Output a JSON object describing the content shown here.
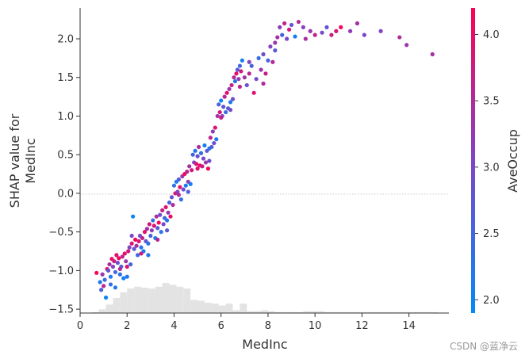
{
  "chart_data": {
    "type": "scatter",
    "title": "",
    "xlabel": "MedInc",
    "ylabel_lines": [
      "SHAP value for",
      "MedInc"
    ],
    "xlim": [
      0,
      15.7
    ],
    "ylim": [
      -1.55,
      2.4
    ],
    "xticks": [
      0,
      2,
      4,
      6,
      8,
      10,
      12,
      14
    ],
    "yticks": [
      -1.5,
      -1.0,
      -0.5,
      0.0,
      0.5,
      1.0,
      1.5,
      2.0
    ],
    "zero_line": true,
    "colorbar": {
      "label": "AveOccup",
      "min": 1.9,
      "max": 4.2,
      "ticks": [
        2.0,
        2.5,
        3.0,
        3.5,
        4.0
      ],
      "low_color": "#008afb",
      "high_color": "#ff0052"
    },
    "histogram": {
      "bin_edges": [
        0.5,
        0.8,
        1.1,
        1.4,
        1.7,
        2.0,
        2.3,
        2.6,
        2.9,
        3.2,
        3.5,
        3.8,
        4.1,
        4.4,
        4.7,
        5.0,
        5.3,
        5.6,
        5.9,
        6.2,
        6.5,
        6.8,
        7.1,
        7.4,
        7.7,
        8.0,
        8.3,
        8.6,
        8.9,
        9.2,
        9.5,
        9.8,
        10.1,
        10.4,
        10.7,
        11.0,
        11.3,
        11.6,
        11.9,
        12.2,
        12.5,
        12.8,
        13.1,
        13.4,
        13.7,
        14.0,
        14.3,
        14.6,
        14.9,
        15.2
      ],
      "counts": [
        1,
        4,
        9,
        16,
        22,
        26,
        28,
        27,
        26,
        28,
        32,
        30,
        28,
        26,
        14,
        13,
        11,
        10,
        8,
        10,
        3,
        10,
        2,
        2,
        3,
        2,
        1,
        1,
        1,
        1,
        2,
        2,
        2,
        1,
        1,
        1,
        1,
        1,
        1,
        1,
        1,
        1,
        1,
        1,
        1,
        1,
        1,
        1,
        1
      ]
    },
    "points": [
      [
        0.7,
        -1.03,
        4.1
      ],
      [
        0.85,
        -1.15,
        2.2
      ],
      [
        0.9,
        -1.25,
        2.6
      ],
      [
        0.95,
        -1.05,
        3.3
      ],
      [
        1.0,
        -1.2,
        3.6
      ],
      [
        1.05,
        -1.12,
        2.4
      ],
      [
        1.1,
        -1.35,
        2.0
      ],
      [
        1.15,
        -0.98,
        3.9
      ],
      [
        1.2,
        -1.0,
        2.8
      ],
      [
        1.25,
        -0.92,
        3.4
      ],
      [
        1.3,
        -1.08,
        2.2
      ],
      [
        1.35,
        -0.85,
        4.0
      ],
      [
        1.4,
        -0.95,
        3.1
      ],
      [
        1.45,
        -0.88,
        3.7
      ],
      [
        1.5,
        -1.02,
        2.5
      ],
      [
        1.55,
        -0.8,
        3.9
      ],
      [
        1.6,
        -0.9,
        2.9
      ],
      [
        1.65,
        -0.84,
        4.1
      ],
      [
        1.7,
        -1.05,
        2.3
      ],
      [
        1.75,
        -0.95,
        2.6
      ],
      [
        1.8,
        -0.82,
        3.6
      ],
      [
        1.85,
        -1.1,
        2.1
      ],
      [
        1.9,
        -0.78,
        4.0
      ],
      [
        1.95,
        -0.88,
        3.3
      ],
      [
        2.0,
        -1.08,
        2.2
      ],
      [
        2.05,
        -0.75,
        3.8
      ],
      [
        2.1,
        -0.7,
        3.1
      ],
      [
        2.15,
        -0.92,
        2.5
      ],
      [
        2.2,
        -0.65,
        3.9
      ],
      [
        2.25,
        -0.3,
        2.0
      ],
      [
        2.3,
        -0.72,
        2.7
      ],
      [
        2.35,
        -0.6,
        4.1
      ],
      [
        2.4,
        -0.68,
        3.5
      ],
      [
        2.45,
        -0.8,
        2.4
      ],
      [
        2.5,
        -0.62,
        3.9
      ],
      [
        2.55,
        -0.55,
        3.0
      ],
      [
        2.6,
        -0.7,
        2.3
      ],
      [
        2.65,
        -0.58,
        3.6
      ],
      [
        2.7,
        -0.75,
        2.1
      ],
      [
        2.75,
        -0.5,
        4.0
      ],
      [
        2.8,
        -0.62,
        2.8
      ],
      [
        2.85,
        -0.46,
        3.4
      ],
      [
        2.9,
        -0.8,
        2.2
      ],
      [
        2.95,
        -0.4,
        3.8
      ],
      [
        3.0,
        -0.55,
        2.6
      ],
      [
        3.05,
        -0.48,
        3.2
      ],
      [
        3.1,
        -0.35,
        2.4
      ],
      [
        3.15,
        -0.42,
        3.9
      ],
      [
        3.2,
        -0.58,
        2.1
      ],
      [
        3.25,
        -0.3,
        3.5
      ],
      [
        3.3,
        -0.45,
        2.7
      ],
      [
        3.35,
        -0.38,
        4.1
      ],
      [
        3.4,
        -0.28,
        2.9
      ],
      [
        3.45,
        -0.5,
        2.3
      ],
      [
        3.5,
        -0.22,
        3.7
      ],
      [
        3.55,
        -0.4,
        3.0
      ],
      [
        3.6,
        -0.32,
        2.5
      ],
      [
        3.65,
        -0.18,
        3.9
      ],
      [
        3.7,
        -0.35,
        2.2
      ],
      [
        3.75,
        -0.25,
        3.3
      ],
      [
        3.8,
        -0.12,
        2.6
      ],
      [
        3.85,
        -0.3,
        4.0
      ],
      [
        3.9,
        -0.05,
        2.8
      ],
      [
        3.95,
        -0.15,
        3.5
      ],
      [
        4.0,
        0.1,
        2.3
      ],
      [
        4.05,
        0.0,
        3.8
      ],
      [
        4.1,
        0.15,
        2.1
      ],
      [
        4.15,
        0.02,
        3.1
      ],
      [
        4.2,
        0.18,
        2.7
      ],
      [
        4.25,
        0.08,
        3.9
      ],
      [
        4.3,
        -0.08,
        2.4
      ],
      [
        4.35,
        0.22,
        3.3
      ],
      [
        4.4,
        0.05,
        2.9
      ],
      [
        4.45,
        0.25,
        4.1
      ],
      [
        4.5,
        0.1,
        2.2
      ],
      [
        4.55,
        0.28,
        3.6
      ],
      [
        4.6,
        0.02,
        2.6
      ],
      [
        4.65,
        0.35,
        3.4
      ],
      [
        4.7,
        0.12,
        2.0
      ],
      [
        4.75,
        0.3,
        3.8
      ],
      [
        4.8,
        0.5,
        2.5
      ],
      [
        4.85,
        0.4,
        3.1
      ],
      [
        4.9,
        0.55,
        2.2
      ],
      [
        4.95,
        0.38,
        3.9
      ],
      [
        5.0,
        0.48,
        2.8
      ],
      [
        5.05,
        0.6,
        3.5
      ],
      [
        5.1,
        0.36,
        4.0
      ],
      [
        5.15,
        0.52,
        2.4
      ],
      [
        5.2,
        0.35,
        3.7
      ],
      [
        5.25,
        0.45,
        3.0
      ],
      [
        5.3,
        0.62,
        2.1
      ],
      [
        5.35,
        0.4,
        3.3
      ],
      [
        5.4,
        0.55,
        2.7
      ],
      [
        5.45,
        0.32,
        4.1
      ],
      [
        5.5,
        0.58,
        2.3
      ],
      [
        5.55,
        0.72,
        3.6
      ],
      [
        5.6,
        0.6,
        2.6
      ],
      [
        5.65,
        0.8,
        3.2
      ],
      [
        5.7,
        0.65,
        2.9
      ],
      [
        5.75,
        0.85,
        3.9
      ],
      [
        5.8,
        0.7,
        2.2
      ],
      [
        5.85,
        1.0,
        3.4
      ],
      [
        5.9,
        1.15,
        2.5
      ],
      [
        5.95,
        1.05,
        3.8
      ],
      [
        6.0,
        1.2,
        2.0
      ],
      [
        6.05,
        1.0,
        3.1
      ],
      [
        6.1,
        1.12,
        2.8
      ],
      [
        6.15,
        1.25,
        3.6
      ],
      [
        6.2,
        1.05,
        2.4
      ],
      [
        6.25,
        1.3,
        3.9
      ],
      [
        6.3,
        1.1,
        2.6
      ],
      [
        6.35,
        1.35,
        3.3
      ],
      [
        6.4,
        1.18,
        2.2
      ],
      [
        6.45,
        1.4,
        3.7
      ],
      [
        6.5,
        1.22,
        2.9
      ],
      [
        6.55,
        1.5,
        3.5
      ],
      [
        6.6,
        1.45,
        2.3
      ],
      [
        6.65,
        1.55,
        4.0
      ],
      [
        6.7,
        1.6,
        2.7
      ],
      [
        6.75,
        1.48,
        3.2
      ],
      [
        6.8,
        1.65,
        2.5
      ],
      [
        6.85,
        1.58,
        3.8
      ],
      [
        6.9,
        1.72,
        2.1
      ],
      [
        7.0,
        1.5,
        3.4
      ],
      [
        7.1,
        1.4,
        2.8
      ],
      [
        7.2,
        1.55,
        3.6
      ],
      [
        7.3,
        1.65,
        2.6
      ],
      [
        7.4,
        1.3,
        3.9
      ],
      [
        7.5,
        1.48,
        3.0
      ],
      [
        7.6,
        1.75,
        2.4
      ],
      [
        7.7,
        1.6,
        3.3
      ],
      [
        7.8,
        1.8,
        2.9
      ],
      [
        7.9,
        1.55,
        3.7
      ],
      [
        8.0,
        1.72,
        2.5
      ],
      [
        8.1,
        1.9,
        3.1
      ],
      [
        8.2,
        1.7,
        3.5
      ],
      [
        8.3,
        1.85,
        2.7
      ],
      [
        8.4,
        2.02,
        3.4
      ],
      [
        8.5,
        2.15,
        3.2
      ],
      [
        8.6,
        2.05,
        2.6
      ],
      [
        8.7,
        2.2,
        3.6
      ],
      [
        8.8,
        2.0,
        3.0
      ],
      [
        8.9,
        2.12,
        3.8
      ],
      [
        9.0,
        2.18,
        2.9
      ],
      [
        9.15,
        2.03,
        2.1
      ],
      [
        9.3,
        2.22,
        3.5
      ],
      [
        9.5,
        2.15,
        3.1
      ],
      [
        9.6,
        2.0,
        3.4
      ],
      [
        9.8,
        2.1,
        3.3
      ],
      [
        10.0,
        2.05,
        3.6
      ],
      [
        10.3,
        2.08,
        3.0
      ],
      [
        10.5,
        2.15,
        2.8
      ],
      [
        10.7,
        2.05,
        3.7
      ],
      [
        10.9,
        2.1,
        3.9
      ],
      [
        11.1,
        2.15,
        4.1
      ],
      [
        11.5,
        2.1,
        3.2
      ],
      [
        11.8,
        2.2,
        3.4
      ],
      [
        12.1,
        2.05,
        3.0
      ],
      [
        12.8,
        2.1,
        3.1
      ],
      [
        13.6,
        2.02,
        3.5
      ],
      [
        13.9,
        1.92,
        3.3
      ],
      [
        15.0,
        1.8,
        3.4
      ],
      [
        1.3,
        -1.18,
        2.4
      ],
      [
        1.5,
        -1.22,
        2.2
      ],
      [
        1.7,
        -0.98,
        3.5
      ],
      [
        2.0,
        -0.95,
        3.9
      ],
      [
        2.2,
        -0.55,
        3.0
      ],
      [
        2.6,
        -0.78,
        3.8
      ],
      [
        2.9,
        -0.65,
        2.3
      ],
      [
        3.3,
        -0.6,
        3.6
      ],
      [
        3.7,
        -0.48,
        2.7
      ],
      [
        4.2,
        -0.02,
        3.5
      ],
      [
        4.6,
        0.15,
        3.2
      ],
      [
        5.0,
        0.32,
        3.9
      ],
      [
        5.5,
        0.42,
        2.9
      ],
      [
        6.0,
        0.98,
        3.7
      ],
      [
        6.4,
        1.08,
        3.0
      ],
      [
        6.8,
        1.38,
        3.6
      ],
      [
        7.2,
        1.7,
        3.1
      ],
      [
        7.8,
        1.42,
        3.5
      ],
      [
        8.3,
        1.95,
        3.3
      ]
    ]
  },
  "watermark": "CSDN @蓝净云"
}
